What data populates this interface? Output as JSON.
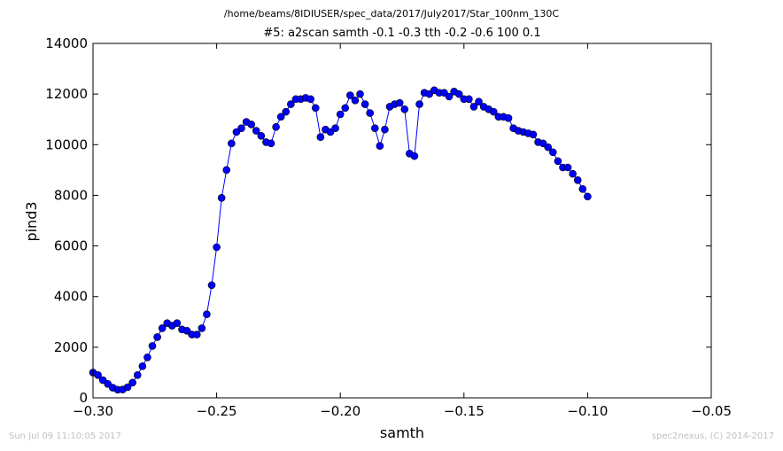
{
  "header": {
    "path": "/home/beams/8IDIUSER/spec_data/2017/July2017/Star_100nm_130C"
  },
  "footer": {
    "timestamp": "Sun Jul 09 11:10:05 2017",
    "credit": "spec2nexus, (C) 2014-2017"
  },
  "chart_data": {
    "type": "line",
    "title": "#5: a2scan  samth -0.1 -0.3  tth -0.2 -0.6  100 0.1",
    "xlabel": "samth",
    "ylabel": "pind3",
    "xlim": [
      -0.3,
      -0.05
    ],
    "ylim": [
      0,
      14000
    ],
    "x_ticks": [
      -0.3,
      -0.25,
      -0.2,
      -0.15,
      -0.1,
      -0.05
    ],
    "x_tick_labels": [
      "−0.30",
      "−0.25",
      "−0.20",
      "−0.15",
      "−0.10",
      "−0.05"
    ],
    "y_ticks": [
      0,
      2000,
      4000,
      6000,
      8000,
      10000,
      12000,
      14000
    ],
    "y_tick_labels": [
      "0",
      "2000",
      "4000",
      "6000",
      "8000",
      "10000",
      "12000",
      "14000"
    ],
    "grid": false,
    "line_color": "#0000ff",
    "marker_color": "#0000ff",
    "series": [
      {
        "x": [
          -0.3,
          -0.298,
          -0.296,
          -0.294,
          -0.292,
          -0.29,
          -0.288,
          -0.286,
          -0.284,
          -0.282,
          -0.28,
          -0.278,
          -0.276,
          -0.274,
          -0.272,
          -0.27,
          -0.268,
          -0.266,
          -0.264,
          -0.262,
          -0.26,
          -0.258,
          -0.256,
          -0.254,
          -0.252,
          -0.25,
          -0.248,
          -0.246,
          -0.244,
          -0.242,
          -0.24,
          -0.238,
          -0.236,
          -0.234,
          -0.232,
          -0.23,
          -0.228,
          -0.226,
          -0.224,
          -0.222,
          -0.22,
          -0.218,
          -0.216,
          -0.214,
          -0.212,
          -0.21,
          -0.208,
          -0.206,
          -0.204,
          -0.202,
          -0.2,
          -0.198,
          -0.196,
          -0.194,
          -0.192,
          -0.19,
          -0.188,
          -0.186,
          -0.184,
          -0.182,
          -0.18,
          -0.178,
          -0.176,
          -0.174,
          -0.172,
          -0.17,
          -0.168,
          -0.166,
          -0.164,
          -0.162,
          -0.16,
          -0.158,
          -0.156,
          -0.154,
          -0.152,
          -0.15,
          -0.148,
          -0.146,
          -0.144,
          -0.142,
          -0.14,
          -0.138,
          -0.136,
          -0.134,
          -0.132,
          -0.13,
          -0.128,
          -0.126,
          -0.124,
          -0.122,
          -0.12,
          -0.118,
          -0.116,
          -0.114,
          -0.112,
          -0.11,
          -0.108,
          -0.106,
          -0.104,
          -0.102,
          -0.1
        ],
        "y": [
          1000,
          900,
          700,
          550,
          400,
          320,
          330,
          420,
          600,
          900,
          1250,
          1600,
          2050,
          2400,
          2750,
          2950,
          2850,
          2950,
          2700,
          2650,
          2500,
          2500,
          2750,
          3300,
          4450,
          5950,
          7900,
          9000,
          10050,
          10500,
          10650,
          10900,
          10800,
          10550,
          10350,
          10100,
          10050,
          10700,
          11100,
          11300,
          11600,
          11800,
          11800,
          11850,
          11800,
          11450,
          10300,
          10600,
          10500,
          10650,
          11200,
          11450,
          11950,
          11750,
          12000,
          11600,
          11250,
          10650,
          9950,
          10600,
          11500,
          11600,
          11650,
          11400,
          9650,
          9550,
          11600,
          12050,
          12000,
          12150,
          12050,
          12050,
          11900,
          12100,
          12000,
          11800,
          11800,
          11500,
          11700,
          11500,
          11400,
          11300,
          11100,
          11100,
          11050,
          10650,
          10550,
          10500,
          10450,
          10400,
          10100,
          10050,
          9900,
          9700,
          9350,
          9100,
          9100,
          8850,
          8600,
          8250,
          7950
        ]
      }
    ]
  }
}
